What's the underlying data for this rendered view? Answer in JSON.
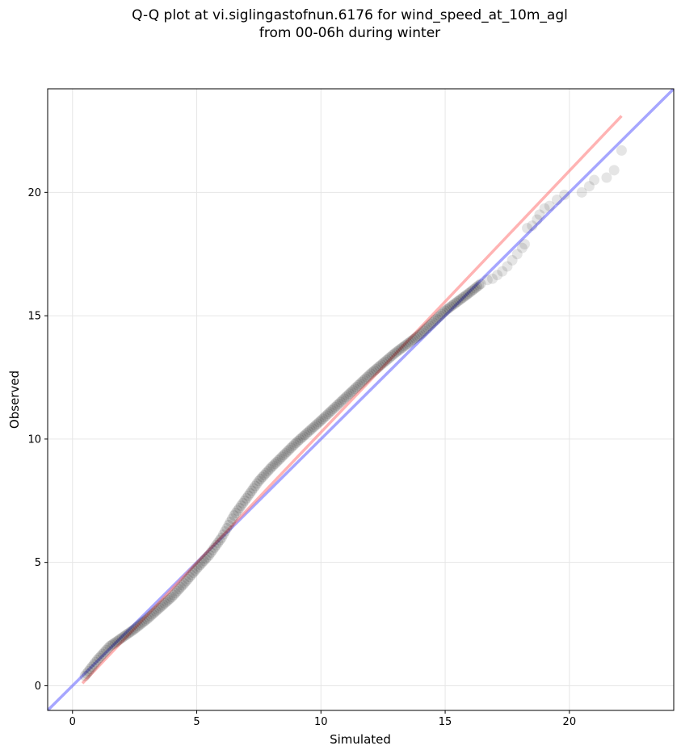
{
  "chart_data": {
    "type": "scatter",
    "title_lines": [
      "Q-Q plot at vi.siglingastofnun.6176 for wind_speed_at_10m_agl",
      "from 00-06h during winter"
    ],
    "xlabel": "Simulated",
    "ylabel": "Observed",
    "xlim": [
      -1.0,
      24.2
    ],
    "ylim": [
      -1.0,
      24.2
    ],
    "xticks": [
      0,
      5,
      10,
      15,
      20
    ],
    "yticks": [
      0,
      5,
      10,
      15,
      20
    ],
    "grid": true,
    "reference_lines": [
      {
        "kind": "identity",
        "color": "#6b6bff",
        "x": [
          -1.0,
          24.2
        ],
        "y": [
          -1.0,
          24.2
        ]
      },
      {
        "kind": "fit",
        "color": "#ff8080",
        "x": [
          0.4,
          22.1
        ],
        "y": [
          0.1,
          23.1
        ]
      }
    ],
    "quantile_curve": [
      [
        0.5,
        0.4
      ],
      [
        1.0,
        1.05
      ],
      [
        1.5,
        1.6
      ],
      [
        2.0,
        1.95
      ],
      [
        2.5,
        2.3
      ],
      [
        3.0,
        2.7
      ],
      [
        3.5,
        3.15
      ],
      [
        4.0,
        3.6
      ],
      [
        4.5,
        4.15
      ],
      [
        5.0,
        4.75
      ],
      [
        5.5,
        5.3
      ],
      [
        6.0,
        6.0
      ],
      [
        6.5,
        6.9
      ],
      [
        7.0,
        7.6
      ],
      [
        7.5,
        8.3
      ],
      [
        8.0,
        8.85
      ],
      [
        9.0,
        9.85
      ],
      [
        10.0,
        10.75
      ],
      [
        11.0,
        11.7
      ],
      [
        12.0,
        12.65
      ],
      [
        13.0,
        13.5
      ],
      [
        14.0,
        14.25
      ],
      [
        15.0,
        15.2
      ],
      [
        16.0,
        15.95
      ],
      [
        16.5,
        16.35
      ]
    ],
    "tail_points": [
      [
        16.7,
        16.45
      ],
      [
        16.9,
        16.5
      ],
      [
        17.1,
        16.65
      ],
      [
        17.3,
        16.8
      ],
      [
        17.5,
        17.0
      ],
      [
        17.7,
        17.25
      ],
      [
        17.9,
        17.5
      ],
      [
        18.1,
        17.75
      ],
      [
        18.2,
        17.9
      ],
      [
        18.3,
        18.55
      ],
      [
        18.5,
        18.65
      ],
      [
        18.7,
        18.9
      ],
      [
        18.8,
        19.1
      ],
      [
        19.0,
        19.35
      ],
      [
        19.2,
        19.45
      ],
      [
        19.5,
        19.7
      ],
      [
        19.8,
        19.9
      ],
      [
        20.5,
        20.0
      ],
      [
        20.8,
        20.25
      ],
      [
        21.0,
        20.5
      ],
      [
        21.5,
        20.6
      ],
      [
        21.8,
        20.9
      ],
      [
        22.1,
        21.7
      ]
    ],
    "marker_color": "#000000"
  }
}
